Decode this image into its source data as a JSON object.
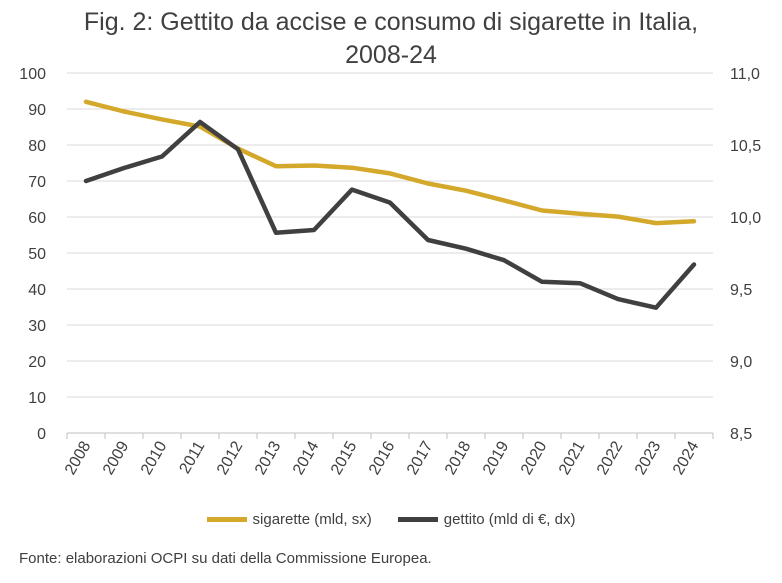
{
  "chart_data": {
    "type": "line",
    "title_line1": "Fig. 2: Gettito da accise e consumo di sigarette in Italia,",
    "title_line2": "2008-24",
    "categories": [
      "2008",
      "2009",
      "2010",
      "2011",
      "2012",
      "2013",
      "2014",
      "2015",
      "2016",
      "2017",
      "2018",
      "2019",
      "2020",
      "2021",
      "2022",
      "2023",
      "2024"
    ],
    "series": [
      {
        "name": "sigarette (mld, sx)",
        "axis": "left",
        "color": "#D4A82A",
        "values": [
          92.0,
          89.3,
          87.1,
          85.1,
          79.0,
          74.1,
          74.3,
          73.7,
          72.1,
          69.3,
          67.3,
          64.6,
          61.8,
          60.9,
          60.1,
          58.3,
          58.8
        ]
      },
      {
        "name": "gettito (mld di €, dx)",
        "axis": "right",
        "color": "#404040",
        "values": [
          10.25,
          10.34,
          10.42,
          10.66,
          10.47,
          9.89,
          9.91,
          10.19,
          10.1,
          9.84,
          9.78,
          9.7,
          9.55,
          9.54,
          9.43,
          9.37,
          9.67
        ]
      }
    ],
    "y_left": {
      "min": 0,
      "max": 100,
      "ticks": [
        "0",
        "10",
        "20",
        "30",
        "40",
        "50",
        "60",
        "70",
        "80",
        "90",
        "100"
      ]
    },
    "y_right": {
      "min": 8.5,
      "max": 11.0,
      "ticks": [
        "8,5",
        "9,0",
        "9,5",
        "10,0",
        "10,5",
        "11,0"
      ]
    },
    "grid": true,
    "legend_position": "bottom",
    "source": "Fonte: elaborazioni OCPI su dati della Commissione Europea."
  }
}
